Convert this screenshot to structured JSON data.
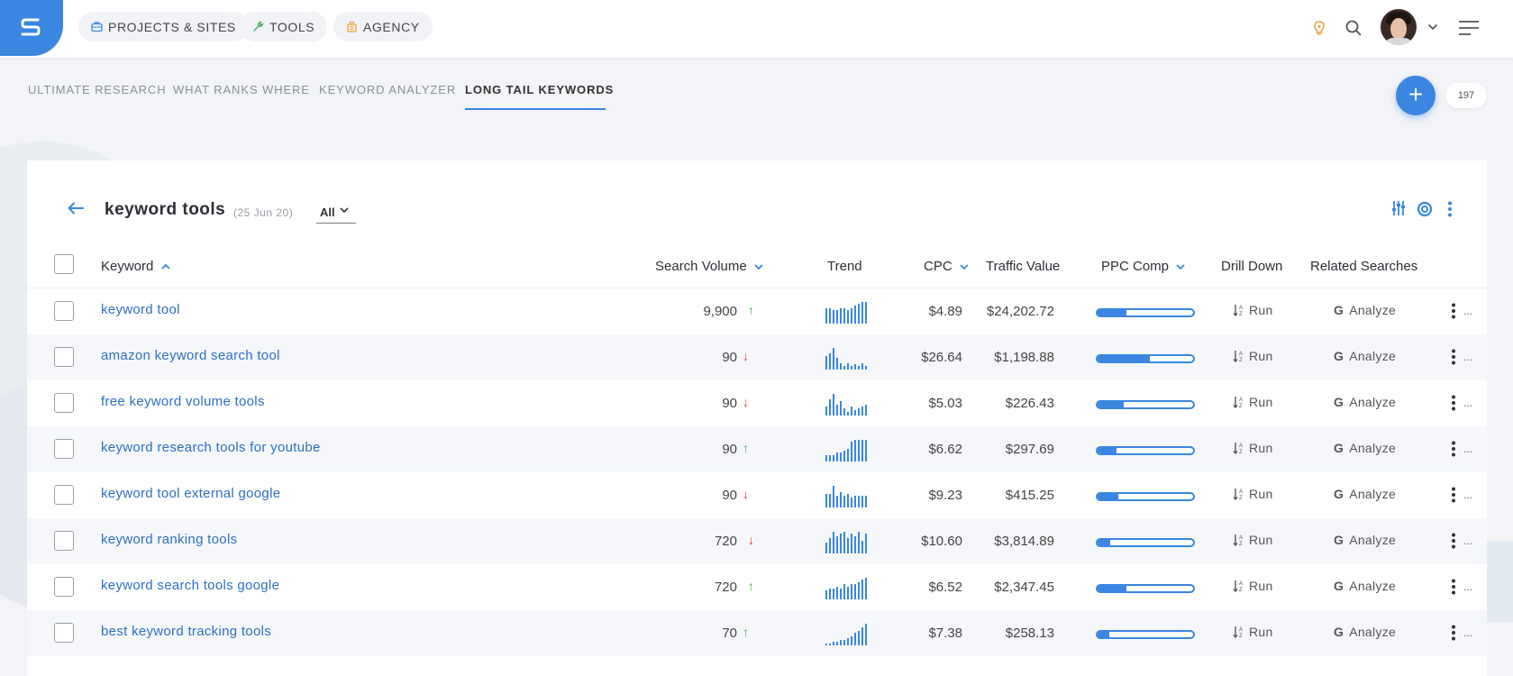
{
  "header": {
    "nav": [
      {
        "label": "PROJECTS & SITES",
        "icon": "briefcase-icon"
      },
      {
        "label": "TOOLS",
        "icon": "tools-icon"
      },
      {
        "label": "AGENCY",
        "icon": "agency-icon"
      }
    ]
  },
  "tabs": [
    {
      "label": "ULTIMATE RESEARCH",
      "active": false
    },
    {
      "label": "WHAT RANKS WHERE",
      "active": false
    },
    {
      "label": "KEYWORD ANALYZER",
      "active": false
    },
    {
      "label": "LONG TAIL KEYWORDS",
      "active": true
    }
  ],
  "fab_label": "+",
  "count_badge": "197",
  "report": {
    "title": "keyword tools",
    "date": "(25 Jun 20)",
    "filter": "All"
  },
  "table": {
    "columns": {
      "keyword": "Keyword",
      "search_volume": "Search Volume",
      "trend": "Trend",
      "cpc": "CPC",
      "traffic_value": "Traffic Value",
      "ppc_comp": "PPC Comp",
      "drill_down": "Drill Down",
      "related": "Related Searches"
    },
    "run_label": "Run",
    "analyze_label": "Analyze",
    "rows": [
      {
        "keyword": "keyword tool",
        "volume": "9,900",
        "dir": "up",
        "cpc": "$4.89",
        "traffic": "$24,202.72",
        "comp": 0.3,
        "trend": [
          8,
          8,
          7,
          7,
          8,
          8,
          7,
          8,
          9,
          10,
          11,
          11
        ]
      },
      {
        "keyword": "amazon keyword search tool",
        "volume": "90",
        "dir": "down",
        "cpc": "$26.64",
        "traffic": "$1,198.88",
        "comp": 0.55,
        "trend": [
          8,
          10,
          13,
          7,
          4,
          2,
          4,
          2,
          3,
          2,
          4,
          2
        ]
      },
      {
        "keyword": "free keyword volume tools",
        "volume": "90",
        "dir": "down",
        "cpc": "$5.03",
        "traffic": "$226.43",
        "comp": 0.27,
        "trend": [
          5,
          9,
          12,
          6,
          8,
          4,
          2,
          5,
          3,
          4,
          5,
          6
        ]
      },
      {
        "keyword": "keyword research tools for youtube",
        "volume": "90",
        "dir": "up",
        "cpc": "$6.62",
        "traffic": "$297.69",
        "comp": 0.2,
        "trend": [
          3,
          3,
          3,
          4,
          4,
          5,
          6,
          9,
          10,
          10,
          10,
          10
        ]
      },
      {
        "keyword": "keyword tool external google",
        "volume": "90",
        "dir": "down",
        "cpc": "$9.23",
        "traffic": "$415.25",
        "comp": 0.22,
        "trend": [
          7,
          7,
          11,
          6,
          8,
          6,
          7,
          5,
          6,
          6,
          6,
          6
        ]
      },
      {
        "keyword": "keyword ranking tools",
        "volume": "720",
        "dir": "down",
        "cpc": "$10.60",
        "traffic": "$3,814.89",
        "comp": 0.13,
        "trend": [
          5,
          7,
          10,
          8,
          9,
          10,
          7,
          9,
          8,
          10,
          6,
          9
        ]
      },
      {
        "keyword": "keyword search tools google",
        "volume": "720",
        "dir": "up",
        "cpc": "$6.52",
        "traffic": "$2,347.45",
        "comp": 0.3,
        "trend": [
          4,
          5,
          5,
          6,
          5,
          7,
          6,
          7,
          7,
          8,
          9,
          10
        ]
      },
      {
        "keyword": "best keyword tracking tools",
        "volume": "70",
        "dir": "up",
        "cpc": "$7.38",
        "traffic": "$258.13",
        "comp": 0.12,
        "trend": [
          1,
          1,
          2,
          2,
          3,
          3,
          4,
          5,
          7,
          8,
          10,
          12
        ]
      }
    ]
  },
  "colors": {
    "accent": "#3a86e0",
    "link": "#2f6fc4",
    "up": "#4caf50",
    "down": "#e53935",
    "bulb": "#f0a23c"
  }
}
